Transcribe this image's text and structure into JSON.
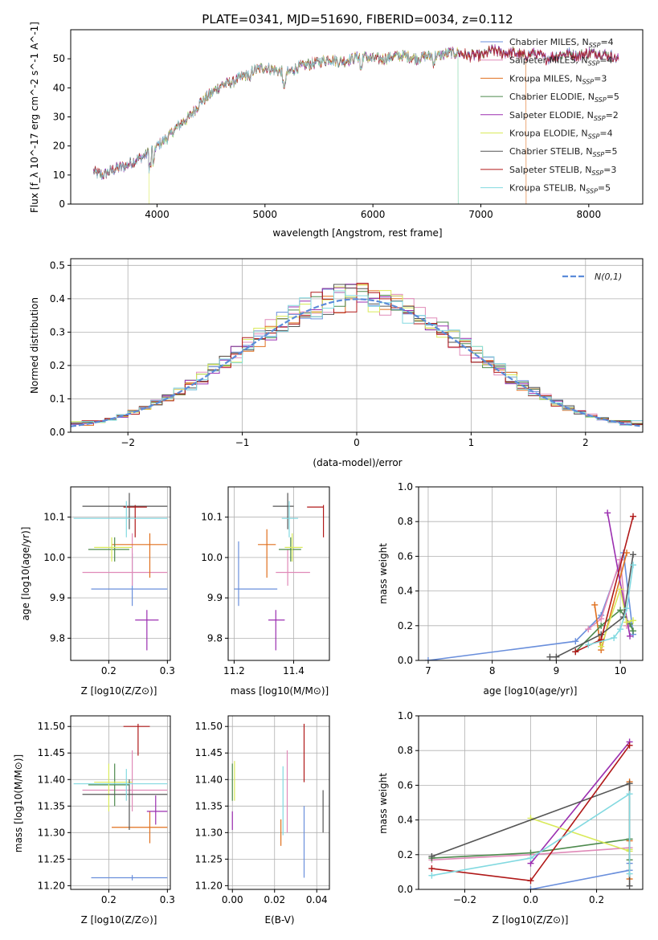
{
  "colors": [
    "#6a8fdc",
    "#e08ab8",
    "#e0701e",
    "#4d8a4d",
    "#9b2fb0",
    "#d9ea5a",
    "#555555",
    "#b01818",
    "#82d9e0"
  ],
  "chart_data": [
    {
      "id": "spectrum",
      "type": "line",
      "title": "PLATE=0341, MJD=51690, FIBERID=0034, z=0.112",
      "xlabel": "wavelength [Angstrom, rest frame]",
      "ylabel": "Flux [f_λ 10^-17 erg cm^-2 s^-1 A^-1]",
      "xlim": [
        3200,
        8500
      ],
      "ylim": [
        0,
        60
      ],
      "xticks": [
        4000,
        5000,
        6000,
        7000,
        8000
      ],
      "yticks": [
        0,
        10,
        20,
        30,
        40,
        50
      ],
      "continuum": {
        "x": [
          3410,
          3500,
          3600,
          3700,
          3800,
          3900,
          4000,
          4100,
          4200,
          4300,
          4400,
          4500,
          4600,
          4700,
          4800,
          4900,
          5000,
          5100,
          5200,
          5300,
          5400,
          5500,
          5600,
          5700,
          5800,
          5900,
          6000,
          6100,
          6200,
          6300,
          6400,
          6500,
          6600,
          6700,
          6800,
          6900,
          7000,
          7100,
          7200,
          7300,
          7400,
          7500,
          7600,
          7700,
          7800,
          7900,
          8000,
          8100,
          8200,
          8280
        ],
        "y": [
          11,
          10,
          12,
          13,
          15,
          17,
          20,
          23,
          27,
          30,
          35,
          38,
          41,
          42,
          44,
          46,
          47,
          46,
          45,
          47,
          48,
          49,
          50,
          49,
          50,
          51,
          50,
          50,
          51,
          51,
          50,
          51,
          51,
          52,
          52,
          51,
          51,
          53,
          52,
          52,
          51,
          52,
          50,
          51,
          52,
          51,
          52,
          52,
          51,
          50
        ]
      },
      "legend": [
        {
          "label": "Chabrier MILES, N",
          "sub": "SSP",
          "value": "=4"
        },
        {
          "label": "Salpeter MILES, N",
          "sub": "SSP",
          "value": "=4"
        },
        {
          "label": "Kroupa MILES, N",
          "sub": "SSP",
          "value": "=3"
        },
        {
          "label": "Chabrier ELODIE, N",
          "sub": "SSP",
          "value": "=5"
        },
        {
          "label": "Salpeter ELODIE, N",
          "sub": "SSP",
          "value": "=2"
        },
        {
          "label": "Kroupa ELODIE, N",
          "sub": "SSP",
          "value": "=4"
        },
        {
          "label": "Chabrier STELIB, N",
          "sub": "SSP",
          "value": "=5"
        },
        {
          "label": "Salpeter STELIB, N",
          "sub": "SSP",
          "value": "=3"
        },
        {
          "label": "Kroupa STELIB, N",
          "sub": "SSP",
          "value": "=5"
        }
      ],
      "legend_position": "upper-right"
    },
    {
      "id": "residuals",
      "type": "line",
      "xlabel": "(data-model)/error",
      "ylabel": "Normed distribution",
      "xlim": [
        -2.5,
        2.5
      ],
      "ylim": [
        0,
        0.52
      ],
      "xticks": [
        -2,
        -1,
        0,
        1,
        2
      ],
      "yticks": [
        0.0,
        0.1,
        0.2,
        0.3,
        0.4,
        0.5
      ],
      "gaussian_label": "N(0,1)",
      "legend_position": "upper-right"
    },
    {
      "id": "age_vs_Z",
      "type": "scatter",
      "xlabel": "Z [log10(Z/Z⊙)]",
      "ylabel": "age [log10(age/yr)]",
      "xlim": [
        0.135,
        0.305
      ],
      "ylim": [
        9.745,
        10.175
      ],
      "xticks": [
        0.2,
        0.3
      ],
      "yticks": [
        9.8,
        9.9,
        10.0,
        10.1
      ],
      "points": [
        {
          "x": 0.24,
          "y": 9.922,
          "xerr": [
            0.17,
            0.3
          ],
          "yerr": [
            9.88,
            10.01
          ],
          "c": 0
        },
        {
          "x": 0.24,
          "y": 9.963,
          "xerr": [
            0.155,
            0.3
          ],
          "yerr": [
            9.93,
            10.06
          ],
          "c": 1
        },
        {
          "x": 0.27,
          "y": 10.032,
          "xerr": [
            0.205,
            0.3
          ],
          "yerr": [
            9.95,
            10.06
          ],
          "c": 2
        },
        {
          "x": 0.21,
          "y": 10.02,
          "xerr": [
            0.165,
            0.235
          ],
          "yerr": [
            9.99,
            10.05
          ],
          "c": 3
        },
        {
          "x": 0.265,
          "y": 9.845,
          "xerr": [
            0.245,
            0.285
          ],
          "yerr": [
            9.77,
            9.87
          ],
          "c": 4
        },
        {
          "x": 0.205,
          "y": 10.025,
          "xerr": [
            0.175,
            0.24
          ],
          "yerr": [
            9.99,
            10.05
          ],
          "c": 5
        },
        {
          "x": 0.235,
          "y": 10.127,
          "xerr": [
            0.155,
            0.3
          ],
          "yerr": [
            10.07,
            10.16
          ],
          "c": 6
        },
        {
          "x": 0.245,
          "y": 10.125,
          "xerr": [
            0.225,
            0.265
          ],
          "yerr": [
            10.05,
            10.13
          ],
          "c": 7
        },
        {
          "x": 0.23,
          "y": 10.097,
          "xerr": [
            0.14,
            0.3
          ],
          "yerr": [
            10.05,
            10.14
          ],
          "c": 8
        }
      ]
    },
    {
      "id": "age_vs_mass",
      "type": "scatter",
      "xlabel": "mass [log10(M/M⊙)]",
      "ylabel": "",
      "xlim": [
        11.18,
        11.52
      ],
      "ylim": [
        9.745,
        10.175
      ],
      "xticks": [
        11.2,
        11.4
      ],
      "yticks": [
        9.8,
        9.9,
        10.0,
        10.1
      ],
      "points": [
        {
          "x": 11.215,
          "y": 9.922,
          "xerr": [
            11.2,
            11.345
          ],
          "yerr": [
            9.88,
            10.04
          ],
          "c": 0
        },
        {
          "x": 11.38,
          "y": 9.963,
          "xerr": [
            11.34,
            11.455
          ],
          "yerr": [
            9.93,
            10.02
          ],
          "c": 1
        },
        {
          "x": 11.31,
          "y": 10.032,
          "xerr": [
            11.28,
            11.34
          ],
          "yerr": [
            9.95,
            10.07
          ],
          "c": 2
        },
        {
          "x": 11.39,
          "y": 10.02,
          "xerr": [
            11.35,
            11.425
          ],
          "yerr": [
            9.99,
            10.05
          ],
          "c": 3
        },
        {
          "x": 11.34,
          "y": 9.845,
          "xerr": [
            11.315,
            11.37
          ],
          "yerr": [
            9.77,
            9.87
          ],
          "c": 4
        },
        {
          "x": 11.395,
          "y": 10.025,
          "xerr": [
            11.37,
            11.43
          ],
          "yerr": [
            9.99,
            10.06
          ],
          "c": 5
        },
        {
          "x": 11.38,
          "y": 10.127,
          "xerr": [
            11.33,
            11.4
          ],
          "yerr": [
            10.07,
            10.16
          ],
          "c": 6
        },
        {
          "x": 11.5,
          "y": 10.125,
          "xerr": [
            11.445,
            11.5
          ],
          "yerr": [
            10.05,
            10.13
          ],
          "c": 7
        },
        {
          "x": 11.385,
          "y": 10.097,
          "xerr": [
            11.36,
            11.415
          ],
          "yerr": [
            10.05,
            10.14
          ],
          "c": 8
        }
      ]
    },
    {
      "id": "weight_vs_age",
      "type": "line",
      "xlabel": "age [log10(age/yr)]",
      "ylabel": "mass weight",
      "xlim": [
        6.85,
        10.35
      ],
      "ylim": [
        0,
        1.0
      ],
      "xticks": [
        7,
        8,
        9,
        10
      ],
      "yticks": [
        0.0,
        0.2,
        0.4,
        0.6,
        0.8,
        1.0
      ],
      "series": [
        {
          "c": 0,
          "x": [
            7.0,
            9.3,
            9.7,
            10.05,
            10.2
          ],
          "y": [
            0.0,
            0.11,
            0.26,
            0.62,
            0.15
          ]
        },
        {
          "c": 1,
          "x": [
            9.5,
            9.7,
            10.0,
            10.1
          ],
          "y": [
            0.18,
            0.24,
            0.58,
            0.2
          ]
        },
        {
          "c": 2,
          "x": [
            9.6,
            9.7,
            10.1
          ],
          "y": [
            0.32,
            0.06,
            0.62
          ]
        },
        {
          "c": 3,
          "x": [
            9.3,
            9.7,
            10.0,
            10.15,
            10.2
          ],
          "y": [
            0.05,
            0.2,
            0.29,
            0.21,
            0.17
          ]
        },
        {
          "c": 4,
          "x": [
            9.8,
            10.15
          ],
          "y": [
            0.85,
            0.14
          ]
        },
        {
          "c": 5,
          "x": [
            9.7,
            10.0,
            10.1,
            10.2
          ],
          "y": [
            0.08,
            0.41,
            0.22,
            0.23
          ]
        },
        {
          "c": 6,
          "x": [
            8.9,
            9.0,
            9.7,
            10.05,
            10.2
          ],
          "y": [
            0.02,
            0.02,
            0.15,
            0.25,
            0.61
          ]
        },
        {
          "c": 7,
          "x": [
            9.3,
            9.7,
            10.2
          ],
          "y": [
            0.05,
            0.12,
            0.83
          ]
        },
        {
          "c": 8,
          "x": [
            9.5,
            9.9,
            10.0,
            10.1,
            10.2
          ],
          "y": [
            0.09,
            0.13,
            0.18,
            0.3,
            0.55
          ]
        }
      ]
    },
    {
      "id": "mass_vs_Z",
      "type": "scatter",
      "xlabel": "Z [log10(Z/Z⊙)]",
      "ylabel": "mass [log10(M/M⊙)]",
      "xlim": [
        0.135,
        0.305
      ],
      "ylim": [
        11.193,
        11.52
      ],
      "xticks": [
        0.2,
        0.3
      ],
      "yticks": [
        11.2,
        11.25,
        11.3,
        11.35,
        11.4,
        11.45,
        11.5
      ],
      "points": [
        {
          "x": 0.24,
          "y": 11.215,
          "xerr": [
            0.17,
            0.3
          ],
          "yerr": [
            11.21,
            11.22
          ],
          "c": 0
        },
        {
          "x": 0.24,
          "y": 11.38,
          "xerr": [
            0.155,
            0.3
          ],
          "yerr": [
            11.34,
            11.455
          ],
          "c": 1
        },
        {
          "x": 0.27,
          "y": 11.31,
          "xerr": [
            0.205,
            0.3
          ],
          "yerr": [
            11.28,
            11.34
          ],
          "c": 2
        },
        {
          "x": 0.21,
          "y": 11.39,
          "xerr": [
            0.165,
            0.235
          ],
          "yerr": [
            11.35,
            11.43
          ],
          "c": 3
        },
        {
          "x": 0.28,
          "y": 11.34,
          "xerr": [
            0.265,
            0.3
          ],
          "yerr": [
            11.315,
            11.37
          ],
          "c": 4
        },
        {
          "x": 0.2,
          "y": 11.395,
          "xerr": [
            0.175,
            0.24
          ],
          "yerr": [
            11.34,
            11.43
          ],
          "c": 5
        },
        {
          "x": 0.235,
          "y": 11.372,
          "xerr": [
            0.155,
            0.3
          ],
          "yerr": [
            11.305,
            11.4
          ],
          "c": 6
        },
        {
          "x": 0.25,
          "y": 11.5,
          "xerr": [
            0.225,
            0.27
          ],
          "yerr": [
            11.445,
            11.505
          ],
          "c": 7
        },
        {
          "x": 0.23,
          "y": 11.392,
          "xerr": [
            0.14,
            0.3
          ],
          "yerr": [
            11.36,
            11.42
          ],
          "c": 8
        }
      ]
    },
    {
      "id": "mass_vs_ebv",
      "type": "scatter",
      "xlabel": "E(B-V)",
      "ylabel": "",
      "xlim": [
        -0.002,
        0.046
      ],
      "ylim": [
        11.193,
        11.52
      ],
      "xticks": [
        0.0,
        0.02,
        0.04
      ],
      "yticks": [
        11.2,
        11.25,
        11.3,
        11.35,
        11.4,
        11.45,
        11.5
      ],
      "points": [
        {
          "x": 0.034,
          "y": 11.215,
          "xerr": [
            0.034,
            0.034
          ],
          "yerr": [
            11.215,
            11.35
          ],
          "c": 0
        },
        {
          "x": 0.026,
          "y": 11.38,
          "xerr": [
            0.026,
            0.026
          ],
          "yerr": [
            11.3,
            11.455
          ],
          "c": 1
        },
        {
          "x": 0.023,
          "y": 11.31,
          "xerr": [
            0.023,
            0.023
          ],
          "yerr": [
            11.275,
            11.325
          ],
          "c": 2
        },
        {
          "x": 0.0,
          "y": 11.39,
          "xerr": [
            0.0,
            0.0
          ],
          "yerr": [
            11.36,
            11.43
          ],
          "c": 3
        },
        {
          "x": 0.0,
          "y": 11.34,
          "xerr": [
            0.0,
            0.0
          ],
          "yerr": [
            11.305,
            11.34
          ],
          "c": 4
        },
        {
          "x": 0.001,
          "y": 11.395,
          "xerr": [
            0.001,
            0.001
          ],
          "yerr": [
            11.36,
            11.435
          ],
          "c": 5
        },
        {
          "x": 0.043,
          "y": 11.372,
          "xerr": [
            0.043,
            0.043
          ],
          "yerr": [
            11.3,
            11.38
          ],
          "c": 6
        },
        {
          "x": 0.034,
          "y": 11.5,
          "xerr": [
            0.034,
            0.034
          ],
          "yerr": [
            11.395,
            11.505
          ],
          "c": 7
        },
        {
          "x": 0.024,
          "y": 11.392,
          "xerr": [
            0.024,
            0.024
          ],
          "yerr": [
            11.295,
            11.425
          ],
          "c": 8
        }
      ]
    },
    {
      "id": "weight_vs_Z",
      "type": "line",
      "xlabel": "Z [log10(Z/Z⊙)]",
      "ylabel": "mass weight",
      "xlim": [
        -0.34,
        0.34
      ],
      "ylim": [
        0,
        1.0
      ],
      "xticks": [
        -0.2,
        0.0,
        0.2
      ],
      "yticks": [
        0.0,
        0.2,
        0.4,
        0.6,
        0.8,
        1.0
      ],
      "series": [
        {
          "c": 0,
          "x": [
            0.0,
            0.3,
            0.3
          ],
          "y": [
            0.0,
            0.11,
            0.15
          ]
        },
        {
          "c": 1,
          "x": [
            -0.3,
            0.0,
            0.3
          ],
          "y": [
            0.17,
            0.2,
            0.24
          ]
        },
        {
          "c": 2,
          "x": [
            0.3,
            0.3,
            0.3
          ],
          "y": [
            0.06,
            0.28,
            0.62
          ]
        },
        {
          "c": 3,
          "x": [
            -0.3,
            0.0,
            0.3,
            0.3
          ],
          "y": [
            0.18,
            0.21,
            0.29,
            0.17
          ]
        },
        {
          "c": 4,
          "x": [
            0.0,
            0.3
          ],
          "y": [
            0.15,
            0.85
          ]
        },
        {
          "c": 5,
          "x": [
            0.0,
            0.3,
            0.3
          ],
          "y": [
            0.41,
            0.22,
            0.23
          ]
        },
        {
          "c": 6,
          "x": [
            -0.3,
            0.3,
            0.3
          ],
          "y": [
            0.19,
            0.61,
            0.02
          ]
        },
        {
          "c": 7,
          "x": [
            -0.3,
            0.0,
            0.3
          ],
          "y": [
            0.12,
            0.05,
            0.83
          ]
        },
        {
          "c": 8,
          "x": [
            -0.3,
            0.0,
            0.3,
            0.3
          ],
          "y": [
            0.08,
            0.18,
            0.55,
            0.09
          ]
        }
      ]
    }
  ]
}
